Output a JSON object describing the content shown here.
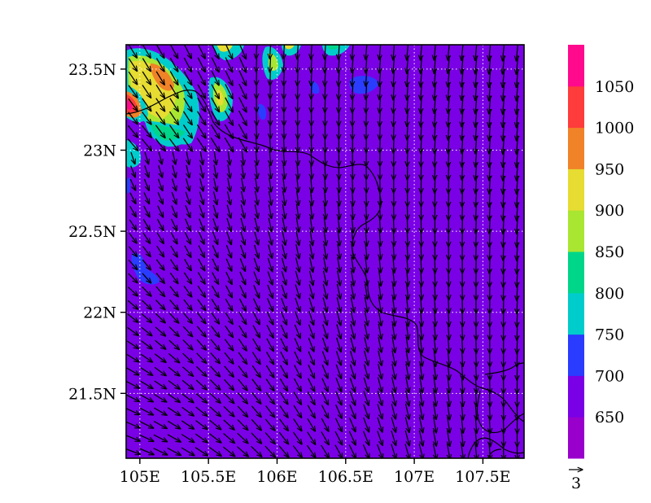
{
  "map": {
    "lon_range": [
      104.9,
      107.8
    ],
    "lat_range": [
      21.1,
      23.65
    ],
    "background_value": 650,
    "graticule": "dotted-white",
    "lon_ticks": [
      {
        "value": 105.0,
        "label": "105E"
      },
      {
        "value": 105.5,
        "label": "105.5E"
      },
      {
        "value": 106.0,
        "label": "106E"
      },
      {
        "value": 106.5,
        "label": "106.5E"
      },
      {
        "value": 107.0,
        "label": "107E"
      },
      {
        "value": 107.5,
        "label": "107.5E"
      }
    ],
    "lat_ticks": [
      {
        "value": 23.5,
        "label": "23.5N"
      },
      {
        "value": 23.0,
        "label": "23N"
      },
      {
        "value": 22.5,
        "label": "22.5N"
      },
      {
        "value": 22.0,
        "label": "22N"
      },
      {
        "value": 21.5,
        "label": "21.5N"
      }
    ]
  },
  "colorbar": {
    "levels": [
      {
        "color": "#9900cc",
        "label": "650"
      },
      {
        "color": "#7a00e6",
        "label": "700"
      },
      {
        "color": "#2a3cff",
        "label": "750"
      },
      {
        "color": "#00cccc",
        "label": "800"
      },
      {
        "color": "#00d68a",
        "label": "850"
      },
      {
        "color": "#a8e632",
        "label": "900"
      },
      {
        "color": "#e6dc32",
        "label": "950"
      },
      {
        "color": "#f08228",
        "label": "1000"
      },
      {
        "color": "#ff3c3c",
        "label": "1050"
      },
      {
        "color": "#ff0a8c",
        "label": ""
      }
    ]
  },
  "vector_legend": {
    "label": "3"
  }
}
